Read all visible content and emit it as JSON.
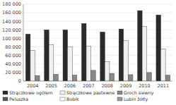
{
  "chart_data": {
    "type": "bar",
    "categories": [
      "2004",
      "2005",
      "2006",
      "2007",
      "2008",
      "2009",
      "2010",
      "2011"
    ],
    "series": [
      {
        "name": "Strączkowe ogółem",
        "color": "#2a2a2a",
        "values": [
          110000,
          120000,
          120000,
          135000,
          115000,
          122000,
          165000,
          155000
        ]
      },
      {
        "name": "Strączkowe pastewne",
        "color": "#f0f0f0",
        "values": [
          72000,
          85000,
          80000,
          82000,
          45000,
          95000,
          128000,
          75000
        ]
      },
      {
        "name": "Groch siewny",
        "color": "#888888",
        "values": [
          13000,
          16000,
          14000,
          25000,
          18000,
          15000,
          20000,
          14000
        ]
      },
      {
        "name": "Peluszka",
        "color": "#555555",
        "values": [
          null,
          null,
          null,
          null,
          null,
          null,
          null,
          null
        ]
      },
      {
        "name": "Bobik",
        "color": "#ffffff",
        "values": [
          null,
          null,
          null,
          null,
          null,
          null,
          null,
          null
        ]
      },
      {
        "name": "Lubin żółty",
        "color": "#999999",
        "values": [
          null,
          null,
          null,
          null,
          null,
          null,
          null,
          null
        ]
      }
    ],
    "ylim": [
      0,
      180000
    ],
    "yticks": [
      0,
      {
        "value": 20000,
        "label": "20 000"
      },
      {
        "value": 40000,
        "label": "40 000"
      },
      {
        "value": 60000,
        "label": "60 000"
      },
      {
        "value": 80000,
        "label": "80 000"
      },
      {
        "value": 100000,
        "label": "100 000"
      },
      {
        "value": 120000,
        "label": "120 000"
      },
      {
        "value": 140000,
        "label": "140 000"
      },
      {
        "value": 160000,
        "label": "160 000"
      },
      {
        "value": 180000,
        "label": "180 000"
      }
    ],
    "grid": true,
    "legend": "bottom"
  }
}
